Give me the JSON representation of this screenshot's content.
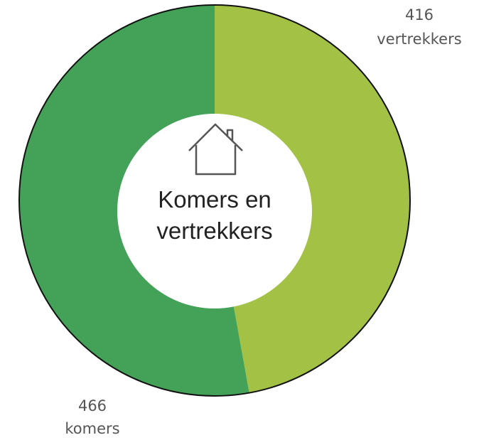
{
  "chart_data": {
    "type": "pie",
    "title": "Komers en vertrekkers",
    "categories": [
      "vertrekkers",
      "komers"
    ],
    "values": [
      416,
      466
    ],
    "colors": [
      "#a2c145",
      "#43a257"
    ]
  }
}
